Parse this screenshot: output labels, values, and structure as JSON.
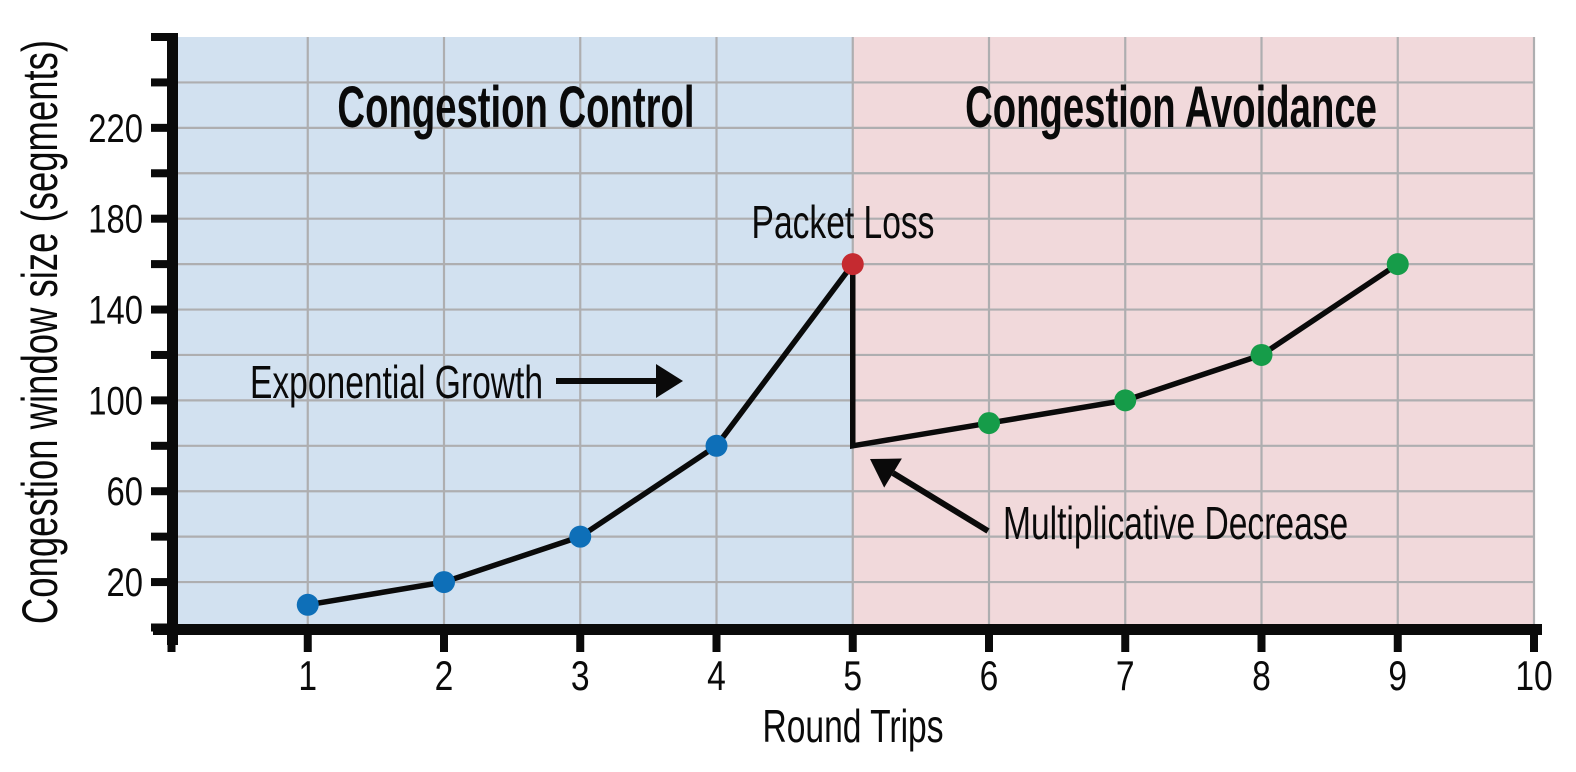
{
  "chart_data": {
    "type": "line",
    "title": "",
    "xlabel": "Round Trips",
    "ylabel": "Congestion window size (segments)",
    "xlim": [
      0,
      10
    ],
    "ylim": [
      0,
      260
    ],
    "x_ticks": [
      1,
      2,
      3,
      4,
      5,
      6,
      7,
      8,
      9,
      10
    ],
    "y_tick_step": 20,
    "y_labeled_ticks": [
      20,
      60,
      100,
      140,
      180,
      220
    ],
    "grid": true,
    "grid_color": "#aeaeb0",
    "axis_color": "#0a0a0a",
    "line_color": "#0a0a0a",
    "regions": [
      {
        "label": "Congestion Control",
        "x_start": 0,
        "x_end": 5,
        "fill": "#d2e1f0"
      },
      {
        "label": "Congestion Avoidance",
        "x_start": 5,
        "x_end": 10,
        "fill": "#f1d9db"
      }
    ],
    "series": [
      {
        "name": "congestion-window",
        "color": "#0a0a0a",
        "points": [
          [
            1,
            10
          ],
          [
            2,
            20
          ],
          [
            3,
            40
          ],
          [
            4,
            80
          ],
          [
            5,
            160
          ],
          [
            5,
            80
          ],
          [
            6,
            90
          ],
          [
            7,
            100
          ],
          [
            8,
            120
          ],
          [
            9,
            160
          ]
        ]
      }
    ],
    "markers": [
      {
        "x": 1,
        "y": 10,
        "color": "#0e6fb8",
        "kind": "slow-start"
      },
      {
        "x": 2,
        "y": 20,
        "color": "#0e6fb8",
        "kind": "slow-start"
      },
      {
        "x": 3,
        "y": 40,
        "color": "#0e6fb8",
        "kind": "slow-start"
      },
      {
        "x": 4,
        "y": 80,
        "color": "#0e6fb8",
        "kind": "slow-start"
      },
      {
        "x": 5,
        "y": 160,
        "color": "#c52a30",
        "kind": "packet-loss"
      },
      {
        "x": 6,
        "y": 90,
        "color": "#169c49",
        "kind": "congestion-avoidance"
      },
      {
        "x": 7,
        "y": 100,
        "color": "#169c49",
        "kind": "congestion-avoidance"
      },
      {
        "x": 8,
        "y": 120,
        "color": "#169c49",
        "kind": "congestion-avoidance"
      },
      {
        "x": 9,
        "y": 160,
        "color": "#169c49",
        "kind": "congestion-avoidance"
      }
    ],
    "annotations": [
      {
        "text": "Packet Loss"
      },
      {
        "text": "Exponential Growth",
        "arrow": {
          "from": [
            556,
            381
          ],
          "to": [
            683,
            381
          ]
        }
      },
      {
        "text": "Multiplicative Decrease",
        "arrow": {
          "from": [
            988,
            531
          ],
          "to": [
            870,
            459
          ]
        }
      }
    ]
  }
}
